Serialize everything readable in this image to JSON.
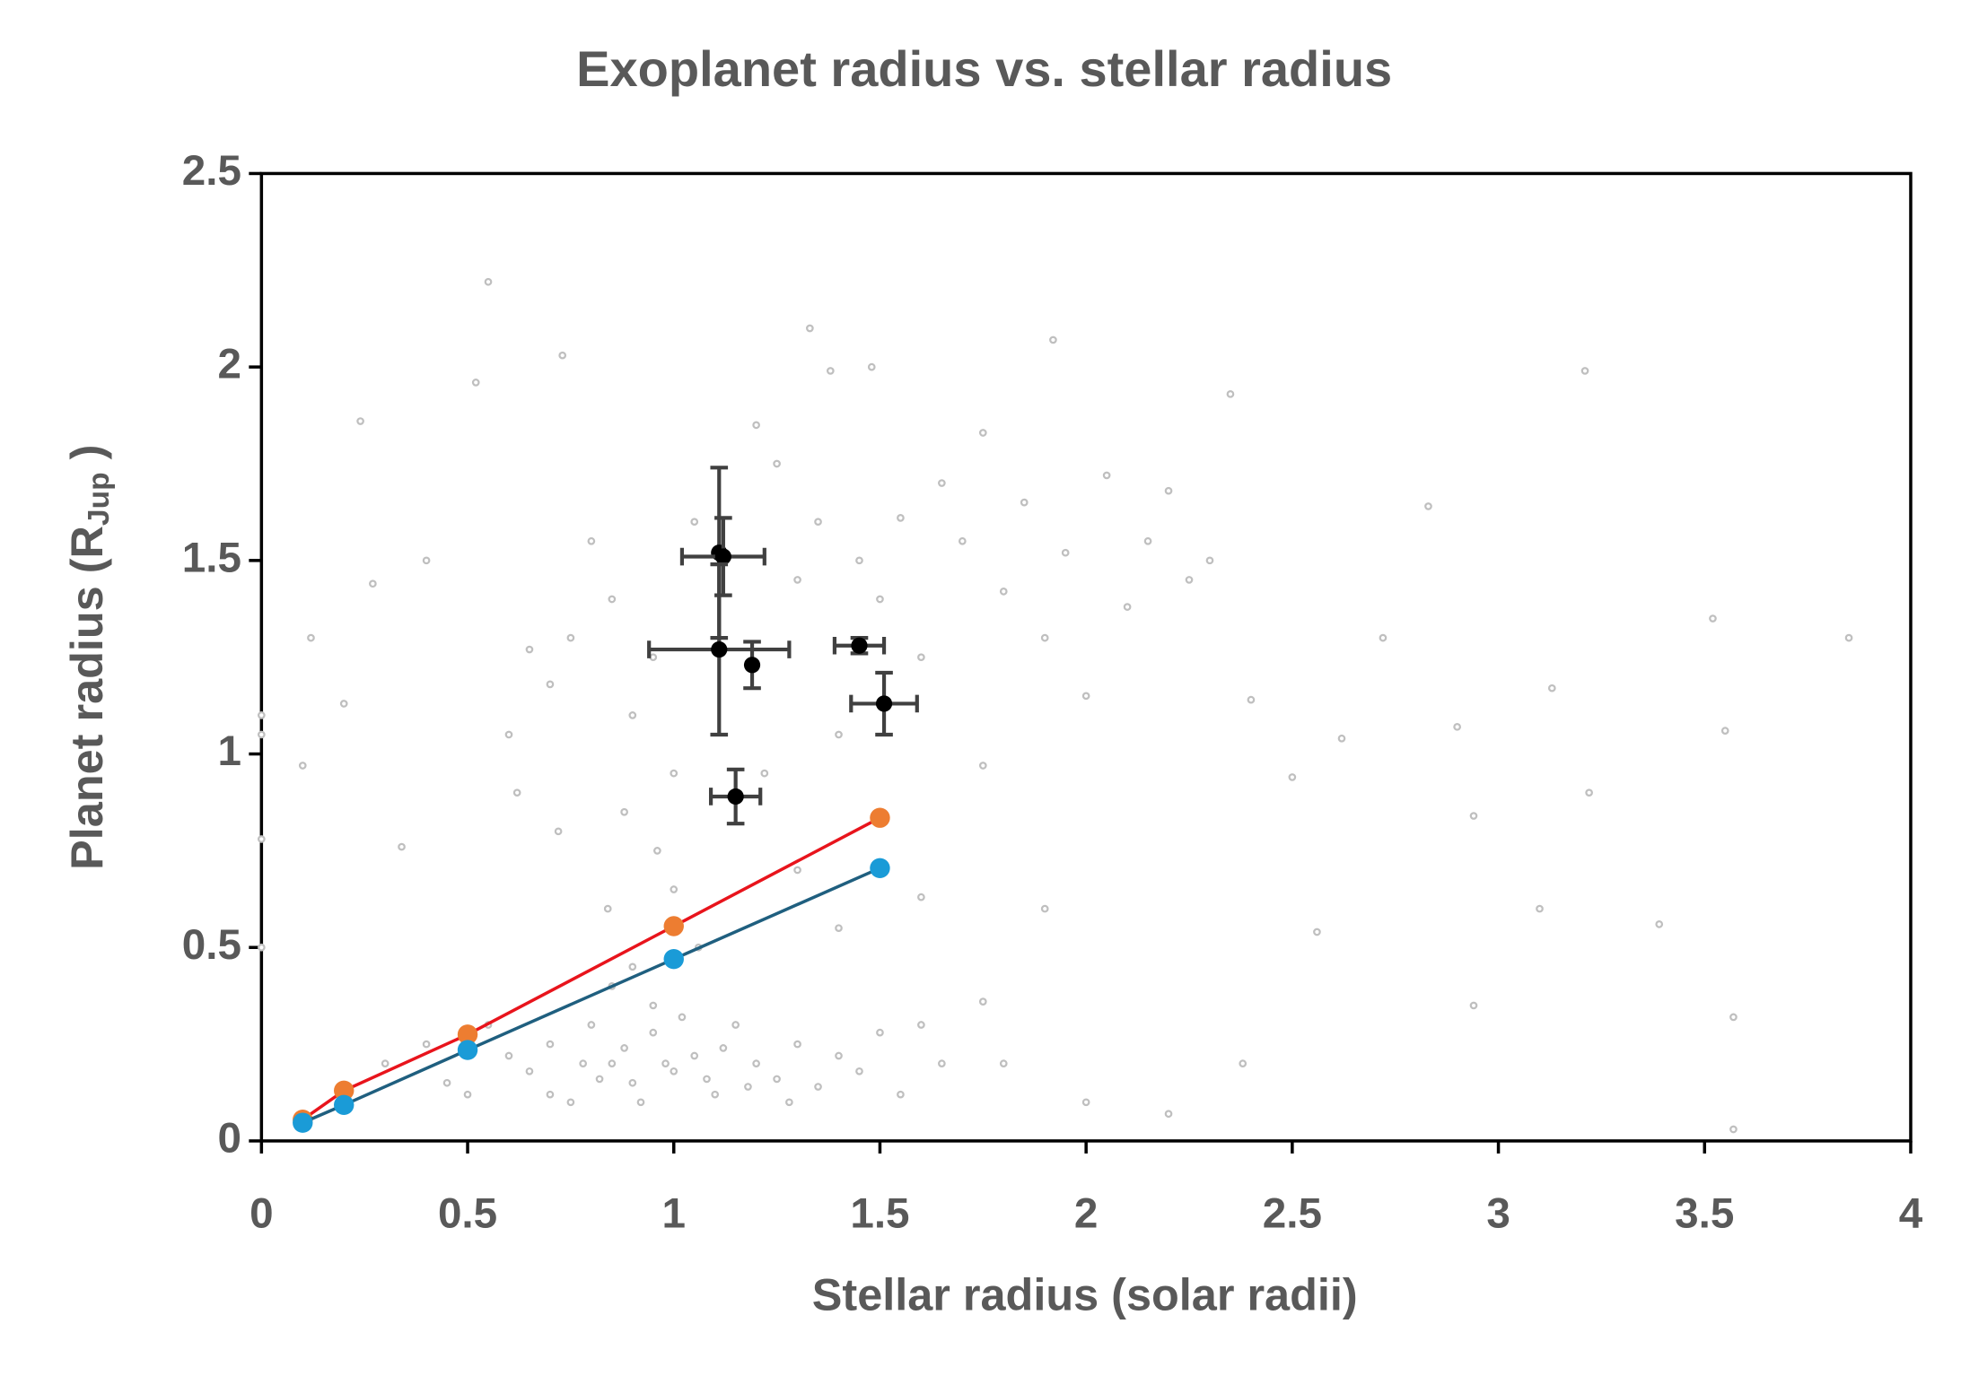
{
  "chart_data": {
    "type": "scatter",
    "title": "Exoplanet radius vs. stellar radius",
    "xlabel": "Stellar radius (solar radii)",
    "ylabel": "Planet radius (R",
    "ylabel_sub": "Jup",
    "ylabel_end": " )",
    "xlim": [
      0,
      4
    ],
    "ylim": [
      0,
      2.5
    ],
    "xticks": [
      0,
      0.5,
      1,
      1.5,
      2,
      2.5,
      3,
      3.5,
      4
    ],
    "yticks": [
      0,
      0.5,
      1,
      1.5,
      2,
      2.5
    ],
    "series": [
      {
        "color": "#bfbfbf",
        "x": [
          0.55,
          0.52,
          0.73,
          0.24,
          0.27,
          1.33,
          1.48,
          1.38,
          1.92,
          2.35,
          3.21,
          0.4,
          0.1,
          0.12,
          0.2,
          0.0,
          0.0,
          0.0,
          0.0,
          0.34,
          0.6,
          0.65,
          0.7,
          0.75,
          0.8,
          0.85,
          0.9,
          0.95,
          1.0,
          1.05,
          1.2,
          1.25,
          1.3,
          1.35,
          1.4,
          1.45,
          1.5,
          1.55,
          1.6,
          1.65,
          1.7,
          1.75,
          1.8,
          1.85,
          1.9,
          1.95,
          2.0,
          2.05,
          2.1,
          2.15,
          2.2,
          2.25,
          2.3,
          2.4,
          2.5,
          2.62,
          2.72,
          2.83,
          2.9,
          2.94,
          3.13,
          3.1,
          3.22,
          3.39,
          3.52,
          3.55,
          3.57,
          3.85,
          2.56,
          2.38,
          0.3,
          0.45,
          0.5,
          0.6,
          0.65,
          0.7,
          0.75,
          0.8,
          0.85,
          0.9,
          0.95,
          1.0,
          1.05,
          1.1,
          1.15,
          1.2,
          1.25,
          1.3,
          1.35,
          1.4,
          1.45,
          1.5,
          1.55,
          1.6,
          1.65,
          0.7,
          0.78,
          0.82,
          0.88,
          0.92,
          0.98,
          1.02,
          1.08,
          1.12,
          1.18,
          1.28,
          0.9,
          0.84,
          0.96,
          1.06,
          1.6,
          1.75,
          1.8,
          1.9,
          2.0,
          2.2,
          3.57,
          2.94,
          1.3,
          1.4,
          0.62,
          0.72,
          0.88,
          1.0,
          1.22,
          1.75,
          0.95,
          0.85,
          0.55,
          0.4
        ],
        "y": [
          2.22,
          1.96,
          2.03,
          1.86,
          1.44,
          2.1,
          2.0,
          1.99,
          2.07,
          1.93,
          1.99,
          1.5,
          0.97,
          1.3,
          1.13,
          1.1,
          1.05,
          0.78,
          0.5,
          0.76,
          1.05,
          1.27,
          1.18,
          1.3,
          1.55,
          1.4,
          1.1,
          1.25,
          0.95,
          1.6,
          1.85,
          1.75,
          1.45,
          1.6,
          1.05,
          1.5,
          1.4,
          1.61,
          1.25,
          1.7,
          1.55,
          1.83,
          1.42,
          1.65,
          1.3,
          1.52,
          1.15,
          1.72,
          1.38,
          1.55,
          1.68,
          1.45,
          1.5,
          1.14,
          0.94,
          1.04,
          1.3,
          1.64,
          1.07,
          0.84,
          1.17,
          0.6,
          0.9,
          0.56,
          1.35,
          1.06,
          0.32,
          1.3,
          0.54,
          0.2,
          0.2,
          0.15,
          0.12,
          0.22,
          0.18,
          0.25,
          0.1,
          0.3,
          0.2,
          0.15,
          0.28,
          0.18,
          0.22,
          0.12,
          0.3,
          0.2,
          0.16,
          0.25,
          0.14,
          0.22,
          0.18,
          0.28,
          0.12,
          0.3,
          0.2,
          0.12,
          0.2,
          0.16,
          0.24,
          0.1,
          0.2,
          0.32,
          0.16,
          0.24,
          0.14,
          0.1,
          0.45,
          0.6,
          0.75,
          0.5,
          0.63,
          0.36,
          0.2,
          0.6,
          0.1,
          0.07,
          0.03,
          0.35,
          0.7,
          0.55,
          0.9,
          0.8,
          0.85,
          0.65,
          0.95,
          0.97,
          0.35,
          0.4,
          0.3,
          0.25
        ]
      },
      {
        "color": "#000000",
        "error_color": "#404040",
        "x": [
          1.11,
          1.12,
          1.11,
          1.45,
          1.19,
          1.51,
          1.15
        ],
        "y": [
          1.52,
          1.51,
          1.27,
          1.28,
          1.23,
          1.13,
          0.89
        ],
        "xerr": [
          0,
          0.1,
          0.17,
          0.06,
          0,
          0.08,
          0.06
        ],
        "yerr": [
          0.22,
          0.1,
          0.22,
          0.02,
          0.06,
          0.08,
          0.07
        ]
      },
      {
        "color": "#ed7d31",
        "line_color": "#e8141c",
        "x": [
          0.1,
          0.2,
          0.5,
          1,
          1.5
        ],
        "y": [
          0.055,
          0.13,
          0.275,
          0.555,
          0.835
        ]
      },
      {
        "color": "#1a9bd7",
        "line_color": "#1f5f7f",
        "x": [
          0.1,
          0.2,
          0.5,
          1,
          1.5
        ],
        "y": [
          0.047,
          0.093,
          0.235,
          0.47,
          0.705
        ]
      }
    ]
  }
}
